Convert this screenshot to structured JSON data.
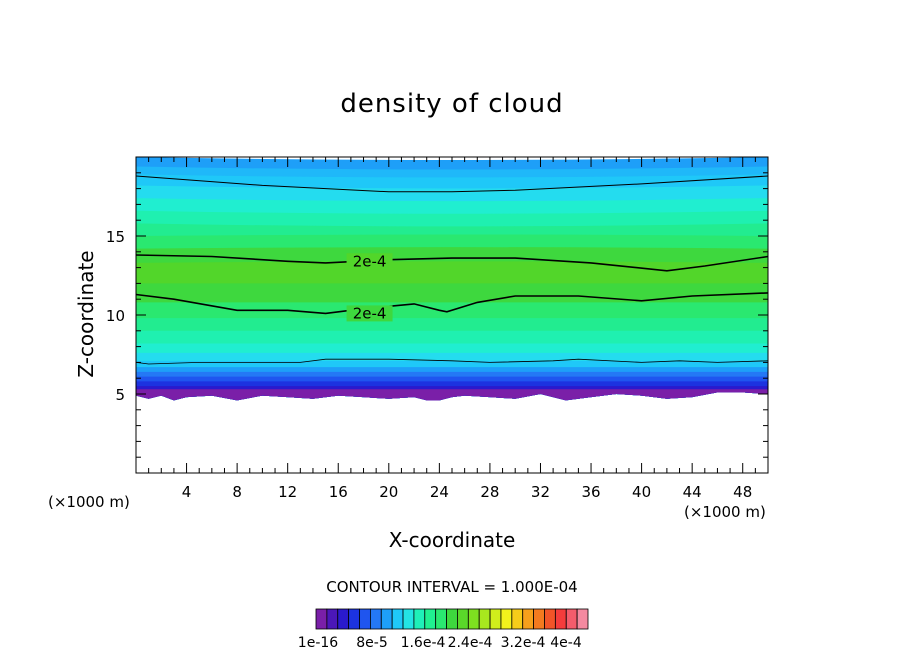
{
  "chart_data": {
    "type": "contour",
    "title": "density of cloud",
    "xlabel": "X-coordinate",
    "ylabel": "Z-coordinate",
    "x_unit": "(×1000 m)",
    "y_unit": "(×1000 m)",
    "xlim": [
      0,
      50
    ],
    "ylim": [
      0,
      20
    ],
    "x_ticks": [
      4,
      8,
      12,
      16,
      20,
      24,
      28,
      32,
      36,
      40,
      44,
      48
    ],
    "y_ticks": [
      5,
      10,
      15
    ],
    "contour_interval_label": "CONTOUR INTERVAL = 1.000E-04",
    "contour_labels": [
      "2e-4",
      "2e-4"
    ],
    "colorbar_tick_labels": [
      "1e-16",
      "8e-5",
      "1.6e-4",
      "2.4e-4",
      "3.2e-4",
      "4e-4"
    ],
    "colorbar_colors": [
      "#7a1fa8",
      "#4b17b8",
      "#2a1acd",
      "#1c33e0",
      "#1f55ef",
      "#2478f5",
      "#1e9ff8",
      "#1fc8f8",
      "#24e4e4",
      "#1ff0b8",
      "#20f090",
      "#2ae870",
      "#3ed83e",
      "#5ad82a",
      "#7ee020",
      "#a8e81e",
      "#d0ee1c",
      "#f2f21c",
      "#f6cc1a",
      "#f6a01c",
      "#f47a1f",
      "#f25428",
      "#f43c3c",
      "#f45c6c",
      "#f48aa0"
    ],
    "cloud_layers": [
      {
        "z_top": 20,
        "color": "#1e9ff8"
      },
      {
        "z_top": 19.4,
        "color": "#1fb8f9"
      },
      {
        "z_top": 18.9,
        "color": "#1fc8f8"
      },
      {
        "z_top": 18.2,
        "color": "#24dcef"
      },
      {
        "z_top": 17.4,
        "color": "#20eed0"
      },
      {
        "z_top": 16.6,
        "color": "#1ff0b0"
      },
      {
        "z_top": 15.8,
        "color": "#22ec90"
      },
      {
        "z_top": 15.0,
        "color": "#2ae870"
      },
      {
        "z_top": 14.2,
        "color": "#3ed83e"
      },
      {
        "z_top": 13.3,
        "color": "#52d62a"
      },
      {
        "z_top": 12.0,
        "color": "#3ed83e"
      },
      {
        "z_top": 10.8,
        "color": "#2ae870"
      },
      {
        "z_top": 9.8,
        "color": "#22ec90"
      },
      {
        "z_top": 9.0,
        "color": "#1ff0b0"
      },
      {
        "z_top": 8.2,
        "color": "#20eed0"
      },
      {
        "z_top": 7.6,
        "color": "#24dcef"
      },
      {
        "z_top": 7.1,
        "color": "#1fc8f8"
      },
      {
        "z_top": 6.7,
        "color": "#1e9ff8"
      },
      {
        "z_top": 6.4,
        "color": "#2478f5"
      },
      {
        "z_top": 6.1,
        "color": "#1f55ef"
      },
      {
        "z_top": 5.8,
        "color": "#1c33e0"
      },
      {
        "z_top": 5.5,
        "color": "#2a1acd"
      },
      {
        "z_top": 5.3,
        "color": "#7a1fa8"
      }
    ],
    "cloud_base": {
      "x": [
        0,
        1,
        2,
        3,
        4,
        6,
        8,
        10,
        12,
        14,
        16,
        18,
        20,
        22,
        23,
        24,
        25,
        26,
        28,
        30,
        32,
        34,
        36,
        38,
        40,
        42,
        44,
        46,
        48,
        50
      ],
      "z": [
        4.9,
        4.7,
        4.9,
        4.6,
        4.8,
        4.9,
        4.6,
        4.9,
        4.8,
        4.7,
        4.9,
        4.8,
        4.7,
        4.8,
        4.6,
        4.6,
        4.8,
        4.9,
        4.8,
        4.7,
        5.0,
        4.6,
        4.8,
        5.0,
        4.9,
        4.7,
        4.8,
        5.1,
        5.1,
        5.0
      ]
    },
    "contour_lines": [
      {
        "x": [
          0,
          10,
          20,
          25,
          30,
          40,
          50
        ],
        "z": [
          18.8,
          18.2,
          17.8,
          17.8,
          17.9,
          18.3,
          18.8
        ],
        "width": 1
      },
      {
        "x": [
          0,
          6,
          12,
          15,
          20,
          25,
          30,
          36,
          42,
          45,
          50
        ],
        "z": [
          13.8,
          13.7,
          13.4,
          13.3,
          13.5,
          13.6,
          13.6,
          13.3,
          12.8,
          13.1,
          13.7
        ],
        "width": 1.6
      },
      {
        "x": [
          0,
          3,
          8,
          12,
          15,
          18,
          22,
          24,
          24.6,
          27,
          30,
          35,
          40,
          44,
          50
        ],
        "z": [
          11.3,
          11.0,
          10.3,
          10.3,
          10.1,
          10.4,
          10.7,
          10.3,
          10.2,
          10.8,
          11.2,
          11.2,
          10.9,
          11.2,
          11.4
        ],
        "width": 1.6
      },
      {
        "x": [
          0,
          1,
          5,
          10,
          13,
          15,
          20,
          25,
          28,
          33,
          35,
          40,
          43,
          46,
          50
        ],
        "z": [
          7.0,
          6.9,
          7.0,
          7.0,
          7.0,
          7.2,
          7.2,
          7.1,
          7.0,
          7.1,
          7.2,
          7.0,
          7.1,
          7.0,
          7.1
        ],
        "width": 0.8
      }
    ]
  }
}
